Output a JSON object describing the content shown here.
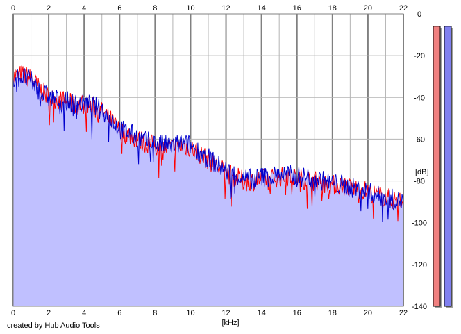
{
  "credit": "created by Hub Audio Tools",
  "chart_data": {
    "type": "area",
    "xlabel": "[kHz]",
    "ylabel": "[dB]",
    "xlim": [
      0,
      22
    ],
    "ylim": [
      -140,
      0
    ],
    "x_ticks": [
      0,
      2,
      4,
      6,
      8,
      10,
      12,
      14,
      16,
      18,
      20,
      22
    ],
    "y_ticks": [
      0,
      -20,
      -40,
      -60,
      -80,
      -100,
      -120,
      -140
    ],
    "y_tick_labels": [
      "0",
      "-20",
      "-40",
      "-60",
      "-80",
      "-100",
      "-120",
      "-140"
    ],
    "grid": true,
    "colors": {
      "fill": "#c0c0ff",
      "red_series": "#ff0000",
      "blue_series": "#0000cc",
      "grid": "#b4b4b4",
      "major_grid": "#808080",
      "meter_red": "#f08080",
      "meter_blue": "#8080f0"
    },
    "series": [
      {
        "color": "#ff0000",
        "x": [
          0,
          0.5,
          1,
          1.5,
          2,
          2.5,
          3,
          3.5,
          4,
          4.5,
          5,
          5.5,
          6,
          6.5,
          7,
          7.5,
          8,
          8.5,
          9,
          9.5,
          10,
          10.5,
          11,
          11.5,
          12,
          12.5,
          13,
          13.5,
          14,
          14.5,
          15,
          15.5,
          16,
          16.5,
          17,
          17.5,
          18,
          18.5,
          19,
          19.5,
          20,
          20.5,
          21,
          21.5,
          22
        ],
        "values": [
          -30,
          -29,
          -31,
          -36,
          -40,
          -41,
          -42,
          -44,
          -43,
          -45,
          -47,
          -51,
          -56,
          -58,
          -60,
          -62,
          -63,
          -64,
          -64,
          -63,
          -64,
          -67,
          -70,
          -73,
          -76,
          -78,
          -80,
          -80,
          -79,
          -79,
          -78,
          -78,
          -79,
          -79,
          -80,
          -81,
          -82,
          -82,
          -83,
          -84,
          -85,
          -87,
          -88,
          -89,
          -90
        ]
      },
      {
        "color": "#0000cc",
        "x": [
          0,
          0.5,
          1,
          1.5,
          2,
          2.5,
          3,
          3.5,
          4,
          4.5,
          5,
          5.5,
          6,
          6.5,
          7,
          7.5,
          8,
          8.5,
          9,
          9.5,
          10,
          10.5,
          11,
          11.5,
          12,
          12.5,
          13,
          13.5,
          14,
          14.5,
          15,
          15.5,
          16,
          16.5,
          17,
          17.5,
          18,
          18.5,
          19,
          19.5,
          20,
          20.5,
          21,
          21.5,
          22
        ],
        "values": [
          -31,
          -30,
          -32,
          -37,
          -40,
          -41,
          -42,
          -43,
          -43,
          -44,
          -46,
          -50,
          -55,
          -57,
          -59,
          -61,
          -62,
          -63,
          -63,
          -62,
          -63,
          -66,
          -69,
          -72,
          -75,
          -77,
          -79,
          -79,
          -78,
          -78,
          -77,
          -77,
          -78,
          -78,
          -79,
          -80,
          -81,
          -82,
          -83,
          -84,
          -85,
          -87,
          -88,
          -89,
          -90
        ]
      }
    ],
    "level_meters": [
      {
        "color": "#f08080",
        "level_db": -3
      },
      {
        "color": "#8080f0",
        "level_db": -3
      }
    ]
  }
}
